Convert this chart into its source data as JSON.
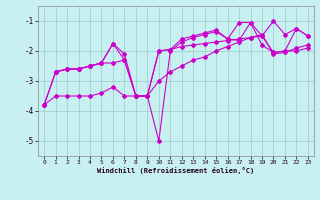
{
  "xlabel": "Windchill (Refroidissement éolien,°C)",
  "bg_color": "#c8f0f0",
  "line_color": "#cc00cc",
  "grid_color": "#99cccc",
  "xlim": [
    -0.5,
    23.5
  ],
  "ylim": [
    -5.5,
    -0.5
  ],
  "yticks": [
    -5,
    -4,
    -3,
    -2,
    -1
  ],
  "xticks": [
    0,
    1,
    2,
    3,
    4,
    5,
    6,
    7,
    8,
    9,
    10,
    11,
    12,
    13,
    14,
    15,
    16,
    17,
    18,
    19,
    20,
    21,
    22,
    23
  ],
  "line1_x": [
    0,
    1,
    2,
    3,
    4,
    5,
    6,
    7,
    8,
    9,
    10,
    11,
    12,
    13,
    14,
    15,
    16,
    17,
    18,
    19,
    20,
    21,
    22,
    23
  ],
  "line1_y": [
    -3.8,
    -2.7,
    -2.6,
    -2.6,
    -2.5,
    -2.4,
    -2.4,
    -2.3,
    -3.5,
    -3.5,
    -2.0,
    -1.95,
    -1.85,
    -1.8,
    -1.75,
    -1.7,
    -1.65,
    -1.6,
    -1.55,
    -1.5,
    -2.05,
    -2.0,
    -2.0,
    -1.9
  ],
  "line2_x": [
    0,
    1,
    2,
    3,
    4,
    5,
    6,
    7,
    8,
    9,
    10,
    11,
    12,
    13,
    14,
    15,
    16,
    17,
    18,
    19,
    20,
    21,
    22,
    23
  ],
  "line2_y": [
    -3.8,
    -2.7,
    -2.6,
    -2.6,
    -2.5,
    -2.4,
    -1.75,
    -2.3,
    -3.5,
    -3.5,
    -5.0,
    -2.0,
    -1.7,
    -1.55,
    -1.45,
    -1.35,
    -1.6,
    -1.05,
    -1.05,
    -1.5,
    -1.0,
    -1.45,
    -1.25,
    -1.5
  ],
  "line3_x": [
    1,
    2,
    3,
    4,
    5,
    6,
    7,
    8,
    9,
    10,
    11,
    12,
    13,
    14,
    15,
    16,
    17,
    18,
    19,
    20,
    21,
    22,
    23
  ],
  "line3_y": [
    -2.7,
    -2.6,
    -2.6,
    -2.5,
    -2.4,
    -1.75,
    -2.1,
    -3.5,
    -3.5,
    -2.0,
    -1.95,
    -1.6,
    -1.5,
    -1.4,
    -1.3,
    -1.6,
    -1.65,
    -1.05,
    -1.8,
    -2.05,
    -2.0,
    -1.25,
    -1.5
  ],
  "line4_x": [
    0,
    1,
    2,
    3,
    4,
    5,
    6,
    7,
    8,
    9,
    10,
    11,
    12,
    13,
    14,
    15,
    16,
    17,
    18,
    19,
    20,
    21,
    22,
    23
  ],
  "line4_y": [
    -3.8,
    -3.5,
    -3.5,
    -3.5,
    -3.5,
    -3.4,
    -3.2,
    -3.5,
    -3.5,
    -3.5,
    -3.0,
    -2.7,
    -2.5,
    -2.3,
    -2.2,
    -2.0,
    -1.85,
    -1.7,
    -1.55,
    -1.45,
    -2.1,
    -2.05,
    -1.9,
    -1.8
  ]
}
